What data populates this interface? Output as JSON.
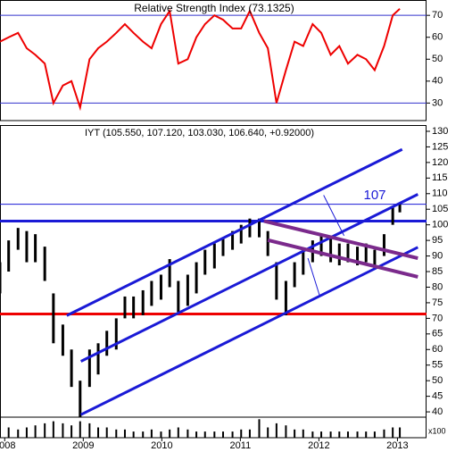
{
  "chart_data": [
    {
      "type": "line",
      "title": "Relative Strength Index (73.1325)",
      "color": "#ee0000",
      "x": [
        2007.94,
        2008.05,
        2008.17,
        2008.28,
        2008.39,
        2008.51,
        2008.62,
        2008.74,
        2008.85,
        2008.96,
        2009.08,
        2009.19,
        2009.3,
        2009.42,
        2009.53,
        2009.64,
        2009.76,
        2009.87,
        2009.99,
        2010.1,
        2010.21,
        2010.33,
        2010.44,
        2010.55,
        2010.67,
        2010.78,
        2010.9,
        2011.01,
        2011.12,
        2011.24,
        2011.35,
        2011.46,
        2011.58,
        2011.69,
        2011.8,
        2011.92,
        2012.03,
        2012.15,
        2012.26,
        2012.37,
        2012.49,
        2012.6,
        2012.71,
        2012.83,
        2012.94,
        2013.03
      ],
      "values": [
        58,
        60,
        62,
        55,
        52,
        48,
        30,
        38,
        40,
        28,
        50,
        55,
        58,
        62,
        66,
        62,
        58,
        55,
        66,
        72,
        48,
        50,
        60,
        66,
        70,
        68,
        64,
        64,
        72,
        62,
        55,
        30,
        45,
        58,
        56,
        66,
        62,
        52,
        56,
        48,
        52,
        50,
        45,
        56,
        70,
        73
      ],
      "xlim": [
        2007.94,
        2013.37
      ],
      "ylim": [
        22,
        77
      ],
      "yticks": [
        30,
        40,
        50,
        60,
        70
      ],
      "hlines": [
        {
          "value": 70,
          "color": "#3333cc"
        },
        {
          "value": 30,
          "color": "#3333cc"
        }
      ]
    },
    {
      "type": "ohlc",
      "title": "IYT (105.550, 107.120, 103.030, 106.640, +0.92000)",
      "color": "#000000",
      "x": [
        2007.94,
        2008.05,
        2008.17,
        2008.28,
        2008.39,
        2008.51,
        2008.62,
        2008.74,
        2008.85,
        2008.96,
        2009.08,
        2009.19,
        2009.3,
        2009.42,
        2009.53,
        2009.64,
        2009.76,
        2009.87,
        2009.99,
        2010.1,
        2010.21,
        2010.33,
        2010.44,
        2010.55,
        2010.67,
        2010.78,
        2010.9,
        2011.01,
        2011.12,
        2011.24,
        2011.35,
        2011.46,
        2011.58,
        2011.69,
        2011.8,
        2011.92,
        2012.03,
        2012.15,
        2012.26,
        2012.37,
        2012.49,
        2012.6,
        2012.71,
        2012.83,
        2012.94,
        2013.03
      ],
      "high": [
        88,
        95,
        99,
        98,
        97,
        93,
        78,
        68,
        60,
        50,
        60,
        62,
        66,
        70,
        77,
        77,
        79,
        82,
        84,
        89,
        82,
        84,
        88,
        92,
        94,
        96,
        98,
        100,
        102,
        102,
        98,
        88,
        82,
        88,
        92,
        95,
        97,
        96,
        94,
        94,
        93,
        94,
        92,
        97,
        106,
        107
      ],
      "low": [
        78,
        85,
        92,
        88,
        88,
        82,
        62,
        58,
        48,
        38,
        48,
        52,
        58,
        60,
        70,
        70,
        71,
        74,
        76,
        80,
        72,
        74,
        78,
        84,
        86,
        90,
        92,
        94,
        96,
        96,
        90,
        76,
        71,
        80,
        84,
        88,
        90,
        88,
        87,
        88,
        87,
        88,
        86,
        90,
        100,
        104
      ],
      "xlim": [
        2007.94,
        2013.37
      ],
      "ylim": [
        38.3,
        132
      ],
      "yticks": [
        40,
        45,
        50,
        55,
        60,
        65,
        70,
        75,
        80,
        85,
        90,
        95,
        100,
        105,
        110,
        115,
        120,
        125,
        130
      ],
      "hlines": [
        {
          "value": 101.2,
          "color": "#1a1ad6",
          "width": 3
        },
        {
          "value": 106.6,
          "color": "#1a1ad6",
          "width": 1
        },
        {
          "value": 71.4,
          "color": "#ee0000",
          "width": 3
        }
      ],
      "lines": [
        {
          "color": "#1a1ad6",
          "width": 3,
          "x": [
            2008.79,
            2013.06
          ],
          "y": [
            70.9,
            124.2
          ]
        },
        {
          "color": "#1a1ad6",
          "width": 3,
          "x": [
            2008.97,
            2013.26
          ],
          "y": [
            56.2,
            109.8
          ]
        },
        {
          "color": "#1a1ad6",
          "width": 3,
          "x": [
            2008.97,
            2013.26
          ],
          "y": [
            39.1,
            92.8
          ]
        },
        {
          "color": "#7b2a8c",
          "width": 4,
          "x": [
            2011.3,
            2013.26
          ],
          "y": [
            101.2,
            89.3
          ]
        },
        {
          "color": "#7b2a8c",
          "width": 4,
          "x": [
            2011.35,
            2013.26
          ],
          "y": [
            95.1,
            83.3
          ]
        },
        {
          "color": "#1a1ad6",
          "width": 1,
          "x": [
            2012.06,
            2012.32
          ],
          "y": [
            109.5,
            96.5
          ]
        },
        {
          "color": "#1a1ad6",
          "width": 1,
          "x": [
            2011.86,
            2012.01
          ],
          "y": [
            89.3,
            77.2
          ]
        }
      ],
      "annotation": "107"
    },
    {
      "type": "bar",
      "title": "x100",
      "color": "#000000",
      "x": [
        2007.94,
        2008.05,
        2008.17,
        2008.28,
        2008.39,
        2008.51,
        2008.62,
        2008.74,
        2008.85,
        2008.96,
        2009.08,
        2009.19,
        2009.3,
        2009.42,
        2009.53,
        2009.64,
        2009.76,
        2009.87,
        2009.99,
        2010.1,
        2010.21,
        2010.33,
        2010.44,
        2010.55,
        2010.67,
        2010.78,
        2010.9,
        2011.01,
        2011.12,
        2011.24,
        2011.35,
        2011.46,
        2011.58,
        2011.69,
        2011.8,
        2011.92,
        2012.03,
        2012.15,
        2012.26,
        2012.37,
        2012.49,
        2012.6,
        2012.71,
        2012.83,
        2012.94,
        2013.03
      ],
      "values": [
        6,
        5,
        4,
        5,
        6,
        7,
        8,
        7,
        6,
        8,
        7,
        5,
        5,
        4,
        4,
        3,
        3,
        4,
        3,
        4,
        5,
        4,
        3,
        3,
        3,
        3,
        3,
        4,
        4,
        9,
        5,
        7,
        6,
        4,
        4,
        3,
        3,
        3,
        3,
        3,
        3,
        3,
        3,
        4,
        5,
        5
      ],
      "xlim": [
        2007.94,
        2013.37
      ],
      "ylim": [
        0,
        10
      ],
      "xticks": [
        2008,
        2009,
        2010,
        2011,
        2012,
        2013
      ]
    }
  ]
}
